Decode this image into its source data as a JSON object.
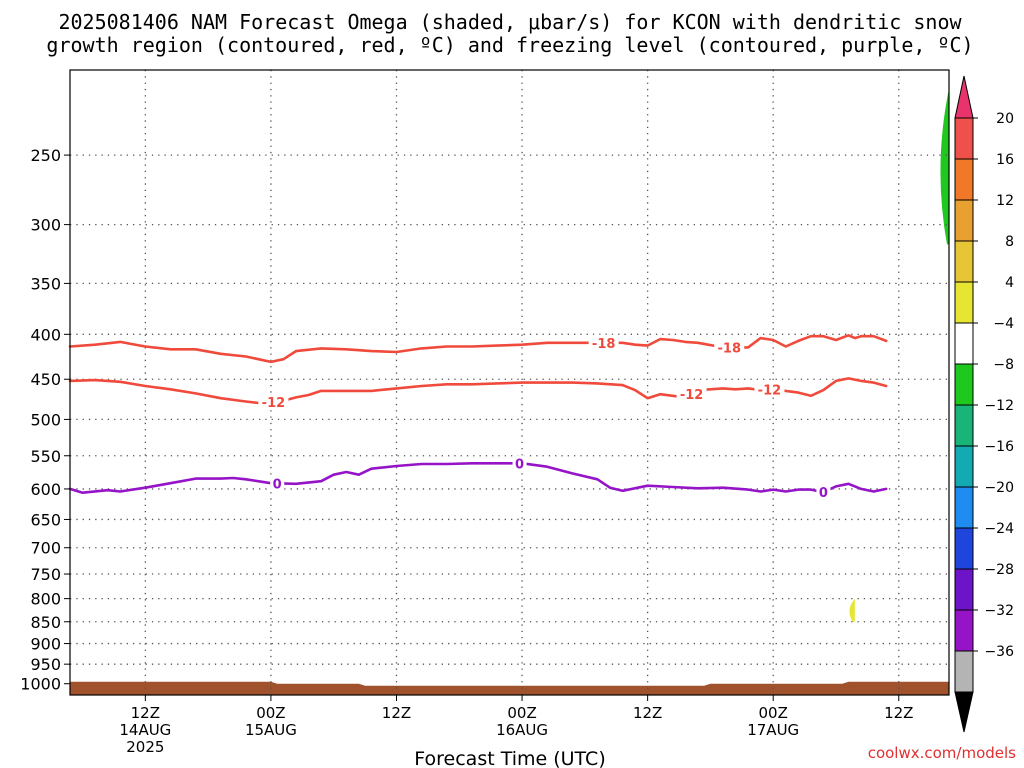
{
  "chart_data": {
    "type": "time-height",
    "title_line1": "2025081406 NAM Forecast Omega (shaded, μbar/s) for KCON with dendritic snow",
    "title_line2": "growth region (contoured, red, ºC) and freezing level (contoured, purple, ºC)",
    "xlabel": "Forecast Time (UTC)",
    "credit": "coolwx.com/models",
    "y_ticks": [
      250,
      300,
      350,
      400,
      450,
      500,
      550,
      600,
      650,
      700,
      750,
      800,
      850,
      900,
      950,
      1000
    ],
    "y_range_hPa": [
      200,
      1030
    ],
    "x_range_hours": [
      6,
      76
    ],
    "x_ticks": [
      {
        "hour": 12,
        "line1": "12Z",
        "line2": "14AUG",
        "line3": "2025"
      },
      {
        "hour": 22,
        "line1": "00Z",
        "line2": "15AUG",
        "line3": ""
      },
      {
        "hour": 32,
        "line1": "12Z",
        "line2": "",
        "line3": ""
      },
      {
        "hour": 42,
        "line1": "00Z",
        "line2": "16AUG",
        "line3": ""
      },
      {
        "hour": 52,
        "line1": "12Z",
        "line2": "",
        "line3": ""
      },
      {
        "hour": 62,
        "line1": "00Z",
        "line2": "17AUG",
        "line3": ""
      },
      {
        "hour": 72,
        "line1": "12Z",
        "line2": "",
        "line3": ""
      }
    ],
    "colorbar": {
      "labels": [
        "20",
        "16",
        "12",
        "8",
        "4",
        "−4",
        "−8",
        "−12",
        "−16",
        "−20",
        "−24",
        "−28",
        "−32",
        "−36"
      ],
      "colors": [
        "#e8336d",
        "#f0504a",
        "#f07828",
        "#e8a030",
        "#e6c636",
        "#e6e632",
        "#ffffff",
        "#1ec81e",
        "#19b478",
        "#14aab4",
        "#1e8cf0",
        "#1e46dc",
        "#6e14c8",
        "#9614c8",
        "#b4b4b4",
        "#000000"
      ]
    },
    "series": [
      {
        "name": "-18",
        "color": "#f04a3c",
        "label_hours": [
          48.5,
          58.5
        ],
        "points": [
          [
            6,
            413
          ],
          [
            8,
            411
          ],
          [
            10,
            408
          ],
          [
            12,
            413
          ],
          [
            14,
            416
          ],
          [
            16,
            416
          ],
          [
            18,
            421
          ],
          [
            20,
            424
          ],
          [
            21,
            427
          ],
          [
            22,
            430
          ],
          [
            23,
            427
          ],
          [
            24,
            418
          ],
          [
            26,
            415
          ],
          [
            28,
            416
          ],
          [
            30,
            418
          ],
          [
            32,
            419
          ],
          [
            34,
            415
          ],
          [
            36,
            413
          ],
          [
            38,
            413
          ],
          [
            40,
            412
          ],
          [
            42,
            411
          ],
          [
            44,
            409
          ],
          [
            46,
            409
          ],
          [
            48,
            409
          ],
          [
            50,
            409
          ],
          [
            51,
            411
          ],
          [
            52,
            412
          ],
          [
            53,
            405
          ],
          [
            54,
            406
          ],
          [
            55,
            408
          ],
          [
            56,
            409
          ],
          [
            58,
            414
          ],
          [
            59,
            414
          ],
          [
            60,
            414
          ],
          [
            61,
            404
          ],
          [
            62,
            406
          ],
          [
            63,
            413
          ],
          [
            64,
            407
          ],
          [
            65,
            402
          ],
          [
            66,
            402
          ],
          [
            67,
            406
          ],
          [
            68,
            401
          ],
          [
            68.5,
            404
          ],
          [
            69,
            402
          ],
          [
            70,
            402
          ],
          [
            71,
            407
          ]
        ]
      },
      {
        "name": "-12",
        "color": "#f04a3c",
        "label_hours": [
          22.2,
          55.5,
          61.7
        ],
        "points": [
          [
            6,
            452
          ],
          [
            8,
            451
          ],
          [
            10,
            453
          ],
          [
            12,
            458
          ],
          [
            14,
            462
          ],
          [
            16,
            467
          ],
          [
            18,
            473
          ],
          [
            20,
            477
          ],
          [
            21,
            479
          ],
          [
            22,
            478
          ],
          [
            23,
            476
          ],
          [
            24,
            472
          ],
          [
            25,
            469
          ],
          [
            26,
            464
          ],
          [
            28,
            464
          ],
          [
            30,
            464
          ],
          [
            32,
            461
          ],
          [
            34,
            458
          ],
          [
            36,
            456
          ],
          [
            38,
            456
          ],
          [
            40,
            455
          ],
          [
            42,
            454
          ],
          [
            44,
            454
          ],
          [
            46,
            454
          ],
          [
            48,
            455
          ],
          [
            50,
            457
          ],
          [
            51,
            463
          ],
          [
            52,
            473
          ],
          [
            53,
            468
          ],
          [
            54,
            470
          ],
          [
            55,
            472
          ],
          [
            56,
            463
          ],
          [
            57,
            462
          ],
          [
            58,
            461
          ],
          [
            59,
            462
          ],
          [
            60,
            461
          ],
          [
            61,
            463
          ],
          [
            62,
            462
          ],
          [
            63,
            464
          ],
          [
            64,
            466
          ],
          [
            65,
            470
          ],
          [
            66,
            463
          ],
          [
            67,
            452
          ],
          [
            68,
            449
          ],
          [
            69,
            452
          ],
          [
            70,
            454
          ],
          [
            71,
            458
          ]
        ]
      },
      {
        "name": "0",
        "color": "#9614c8",
        "label_hours": [
          22.5,
          41.8,
          66.0
        ],
        "points": [
          [
            6,
            600
          ],
          [
            7,
            606
          ],
          [
            9,
            602
          ],
          [
            10,
            604
          ],
          [
            12,
            598
          ],
          [
            14,
            591
          ],
          [
            16,
            584
          ],
          [
            18,
            584
          ],
          [
            19,
            583
          ],
          [
            20,
            585
          ],
          [
            22,
            591
          ],
          [
            24,
            592
          ],
          [
            26,
            588
          ],
          [
            27,
            578
          ],
          [
            28,
            574
          ],
          [
            29,
            578
          ],
          [
            30,
            569
          ],
          [
            32,
            565
          ],
          [
            34,
            562
          ],
          [
            36,
            562
          ],
          [
            38,
            561
          ],
          [
            40,
            561
          ],
          [
            42,
            561
          ],
          [
            44,
            566
          ],
          [
            46,
            576
          ],
          [
            48,
            585
          ],
          [
            49,
            598
          ],
          [
            50,
            603
          ],
          [
            52,
            595
          ],
          [
            54,
            597
          ],
          [
            56,
            599
          ],
          [
            58,
            598
          ],
          [
            60,
            601
          ],
          [
            61,
            604
          ],
          [
            62,
            601
          ],
          [
            63,
            604
          ],
          [
            64,
            601
          ],
          [
            65,
            601
          ],
          [
            66,
            605
          ],
          [
            67,
            596
          ],
          [
            68,
            592
          ],
          [
            69,
            600
          ],
          [
            70,
            604
          ],
          [
            71,
            600
          ]
        ]
      }
    ],
    "omega_shading": [
      {
        "label": "-4 to -8",
        "color": "#1ec81e",
        "hours": [
          75.2,
          76
        ],
        "p_range": [
          210,
          316
        ]
      },
      {
        "label": "4 to 8",
        "color": "#e6e632",
        "hours": [
          68.2,
          68.5
        ],
        "p_range": [
          800,
          850
        ]
      }
    ],
    "ground": {
      "color": "#a0522d"
    }
  }
}
